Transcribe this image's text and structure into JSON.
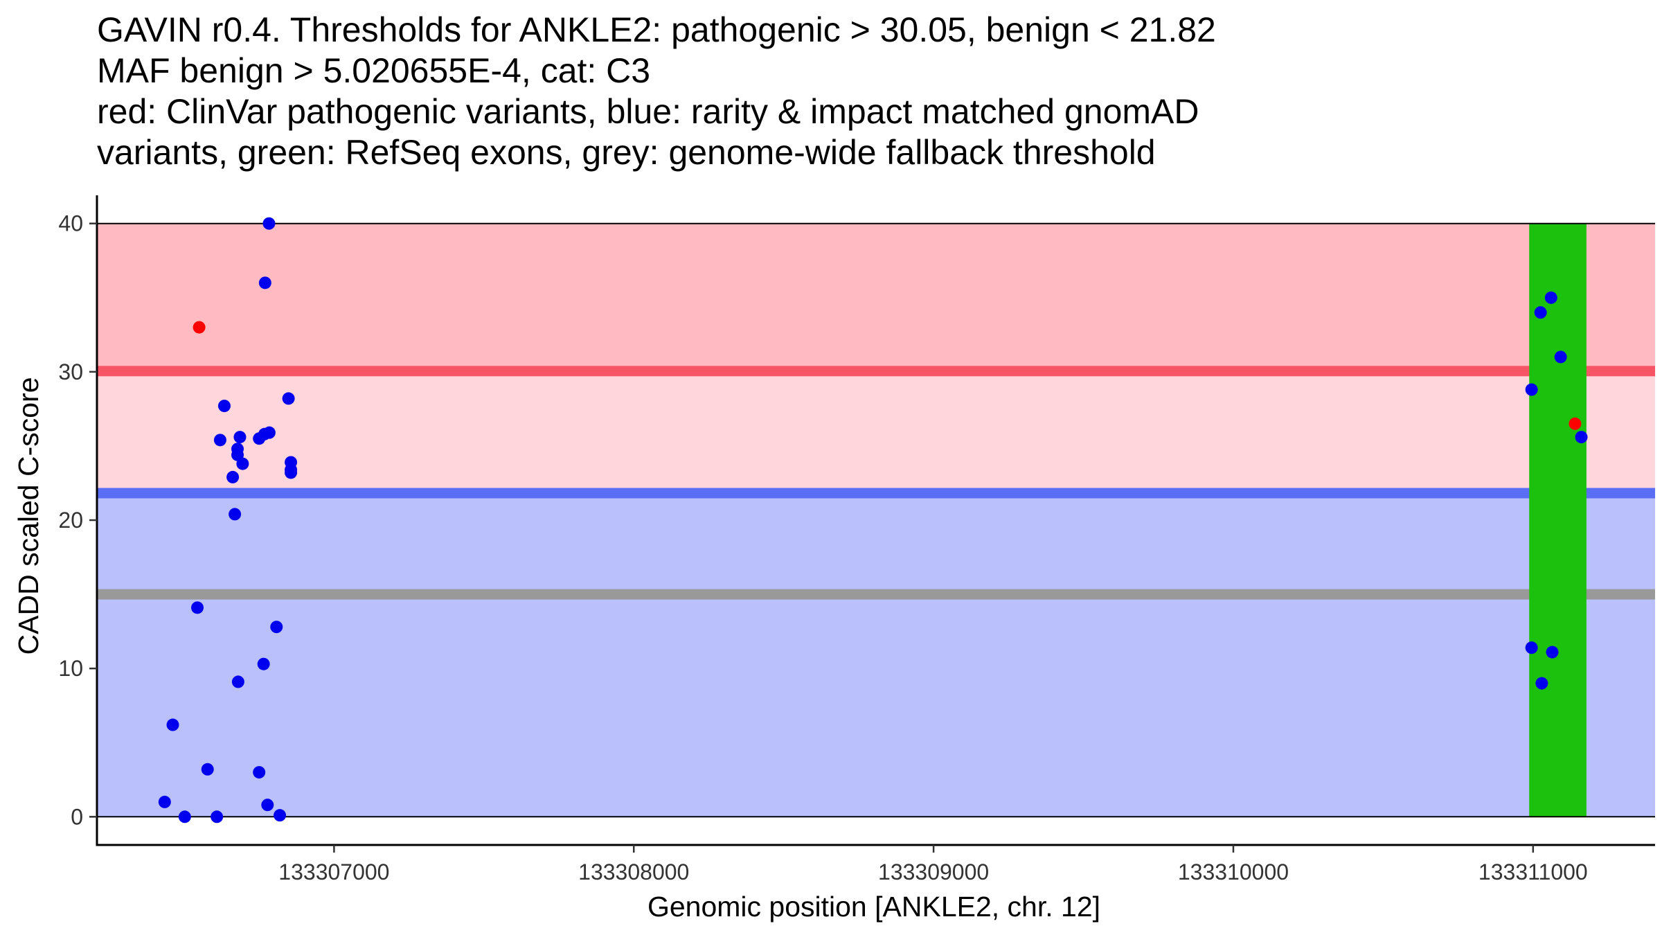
{
  "title_lines": [
    "GAVIN r0.4. Thresholds for ANKLE2: pathogenic > 30.05, benign < 21.82",
    "MAF benign > 5.020655E-4, cat: C3",
    "red: ClinVar pathogenic variants, blue: rarity & impact matched gnomAD",
    "variants, green: RefSeq exons, grey: genome-wide fallback threshold"
  ],
  "chart_data": {
    "type": "scatter",
    "xlabel": "Genomic position [ANKLE2, chr. 12]",
    "ylabel": "CADD scaled C-score",
    "xlim": [
      133306209,
      133311407
    ],
    "ylim": [
      -1.9,
      41.9
    ],
    "x_ticks": [
      133307000,
      133308000,
      133309000,
      133310000,
      133311000
    ],
    "x_tick_labels": [
      "133307000",
      "133308000",
      "133309000",
      "133310000",
      "133311000"
    ],
    "y_ticks": [
      0,
      10,
      20,
      30,
      40
    ],
    "y_tick_labels": [
      "0",
      "10",
      "20",
      "30",
      "40"
    ],
    "grid": false,
    "colors": {
      "pathogenic_band": "#ffbbc1",
      "intermediate_band": "#ffd6dc",
      "benign_band": "#b9c0fb",
      "pathogenic_line": "#f75566",
      "benign_line": "#5a6ef5",
      "fallback_line": "#999999",
      "exon": "#1cc10e",
      "gnomad_point": "#0000ee",
      "clinvar_point": "#ff0000"
    },
    "bands": [
      {
        "from": 30.05,
        "to": 40,
        "color": "#ffbbc1"
      },
      {
        "from": 21.82,
        "to": 30.05,
        "color": "#ffd6dc"
      },
      {
        "from": 0,
        "to": 21.82,
        "color": "#b9c0fb"
      }
    ],
    "thresholds": {
      "pathogenic": 30.05,
      "benign": 21.82,
      "fallback": 15
    },
    "exons": [
      {
        "start": 133310987,
        "end": 133311178
      }
    ],
    "series": [
      {
        "name": "ClinVar pathogenic variants",
        "color": "#ff0000",
        "points": [
          {
            "x": 133306550,
            "y": 33.0
          },
          {
            "x": 133311140,
            "y": 26.5
          }
        ]
      },
      {
        "name": "rarity & impact matched gnomAD variants",
        "color": "#0000ee",
        "points": [
          {
            "x": 133306783,
            "y": 40.0
          },
          {
            "x": 133306770,
            "y": 36.0
          },
          {
            "x": 133306848,
            "y": 28.2
          },
          {
            "x": 133306634,
            "y": 27.7
          },
          {
            "x": 133306620,
            "y": 25.4
          },
          {
            "x": 133306686,
            "y": 25.6
          },
          {
            "x": 133306750,
            "y": 25.5
          },
          {
            "x": 133306768,
            "y": 25.8
          },
          {
            "x": 133306784,
            "y": 25.9
          },
          {
            "x": 133306678,
            "y": 24.8
          },
          {
            "x": 133306678,
            "y": 24.4
          },
          {
            "x": 133306695,
            "y": 23.8
          },
          {
            "x": 133306856,
            "y": 23.9
          },
          {
            "x": 133306856,
            "y": 23.4
          },
          {
            "x": 133306856,
            "y": 23.2
          },
          {
            "x": 133306662,
            "y": 22.9
          },
          {
            "x": 133306669,
            "y": 20.4
          },
          {
            "x": 133306544,
            "y": 14.1
          },
          {
            "x": 133306808,
            "y": 12.8
          },
          {
            "x": 133306765,
            "y": 10.3
          },
          {
            "x": 133306680,
            "y": 9.1
          },
          {
            "x": 133306462,
            "y": 6.2
          },
          {
            "x": 133306578,
            "y": 3.2
          },
          {
            "x": 133306750,
            "y": 3.0
          },
          {
            "x": 133306435,
            "y": 1.0
          },
          {
            "x": 133306778,
            "y": 0.8
          },
          {
            "x": 133306502,
            "y": 0.0
          },
          {
            "x": 133306609,
            "y": 0.0
          },
          {
            "x": 133306819,
            "y": 0.1
          },
          {
            "x": 133311060,
            "y": 35.0
          },
          {
            "x": 133311025,
            "y": 34.0
          },
          {
            "x": 133311092,
            "y": 31.0
          },
          {
            "x": 133310995,
            "y": 28.8
          },
          {
            "x": 133311161,
            "y": 25.6
          },
          {
            "x": 133310995,
            "y": 11.4
          },
          {
            "x": 133311064,
            "y": 11.1
          },
          {
            "x": 133311029,
            "y": 9.0
          }
        ]
      }
    ]
  }
}
